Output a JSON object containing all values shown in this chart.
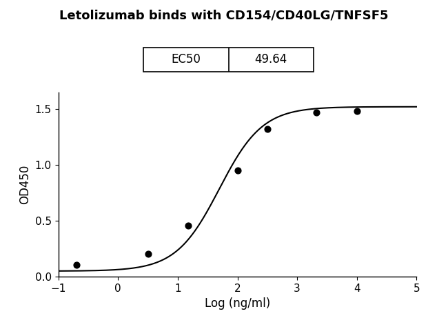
{
  "title": "Letolizumab binds with CD154/CD40LG/TNFSF5",
  "xlabel": "Log (ng/ml)",
  "ylabel": "OD450",
  "xlim": [
    -1,
    5
  ],
  "ylim": [
    0.0,
    1.65
  ],
  "xticks": [
    -1,
    0,
    1,
    2,
    3,
    4,
    5
  ],
  "yticks": [
    0.0,
    0.5,
    1.0,
    1.5
  ],
  "data_x": [
    -0.699,
    0.5,
    1.176,
    2.0,
    2.5,
    3.322,
    4.0
  ],
  "data_y": [
    0.105,
    0.205,
    0.46,
    0.95,
    1.32,
    1.47,
    1.48
  ],
  "ec50_label": "EC50",
  "ec50_value": "49.64",
  "line_color": "#000000",
  "dot_color": "#000000",
  "title_fontsize": 13,
  "axis_label_fontsize": 12,
  "tick_fontsize": 11,
  "table_fontsize": 12,
  "ec50_log": 1.696
}
